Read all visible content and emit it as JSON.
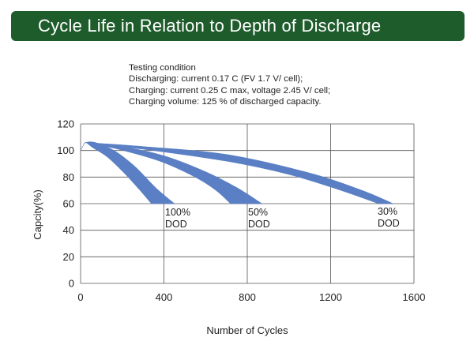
{
  "banner": {
    "title": "Cycle Life in Relation to Depth of Discharge",
    "color": "#1f5c2c"
  },
  "conditions": {
    "heading": "Testing  condition",
    "lines": [
      "Discharging: current  0.17 C  (FV  1.7 V/ cell);",
      "Charging: current  0.25 C  max,  voltage  2.45 V/ cell;",
      "Charging  volume:  125  %  of  discharged  capacity."
    ]
  },
  "chart_data": {
    "type": "area",
    "xlabel": "Number of Cycles",
    "ylabel": "Capcity(%)",
    "xlim": [
      0,
      1600
    ],
    "ylim": [
      0,
      120
    ],
    "xticks": [
      0,
      400,
      800,
      1200,
      1600
    ],
    "yticks": [
      0,
      20,
      40,
      60,
      80,
      100,
      120
    ],
    "grid": true,
    "band_color": "#5b7fc4",
    "series": [
      {
        "annotation": [
          "100%",
          "DOD"
        ],
        "upper": [
          [
            0,
            100
          ],
          [
            12,
            103.5
          ],
          [
            25,
            106
          ],
          [
            70,
            106
          ],
          [
            160,
            100
          ],
          [
            260,
            88
          ],
          [
            360,
            72
          ],
          [
            450,
            60
          ]
        ],
        "lower": [
          [
            0,
            100
          ],
          [
            12,
            103.5
          ],
          [
            25,
            106
          ],
          [
            60,
            102
          ],
          [
            130,
            95
          ],
          [
            210,
            83
          ],
          [
            280,
            71
          ],
          [
            340,
            60
          ]
        ]
      },
      {
        "annotation": [
          "50%",
          "DOD"
        ],
        "upper": [
          [
            25,
            106
          ],
          [
            200,
            103
          ],
          [
            400,
            96
          ],
          [
            600,
            84
          ],
          [
            750,
            72
          ],
          [
            870,
            60
          ]
        ],
        "lower": [
          [
            25,
            106
          ],
          [
            180,
            101
          ],
          [
            380,
            92
          ],
          [
            550,
            80
          ],
          [
            650,
            70
          ],
          [
            720,
            60
          ]
        ]
      },
      {
        "annotation": [
          "30%",
          "DOD"
        ],
        "upper": [
          [
            25,
            106
          ],
          [
            300,
            103
          ],
          [
            700,
            97
          ],
          [
            1100,
            83
          ],
          [
            1350,
            70
          ],
          [
            1500,
            60
          ]
        ],
        "lower": [
          [
            25,
            106
          ],
          [
            300,
            101
          ],
          [
            700,
            92
          ],
          [
            1000,
            82
          ],
          [
            1250,
            70
          ],
          [
            1430,
            60
          ]
        ]
      }
    ]
  }
}
